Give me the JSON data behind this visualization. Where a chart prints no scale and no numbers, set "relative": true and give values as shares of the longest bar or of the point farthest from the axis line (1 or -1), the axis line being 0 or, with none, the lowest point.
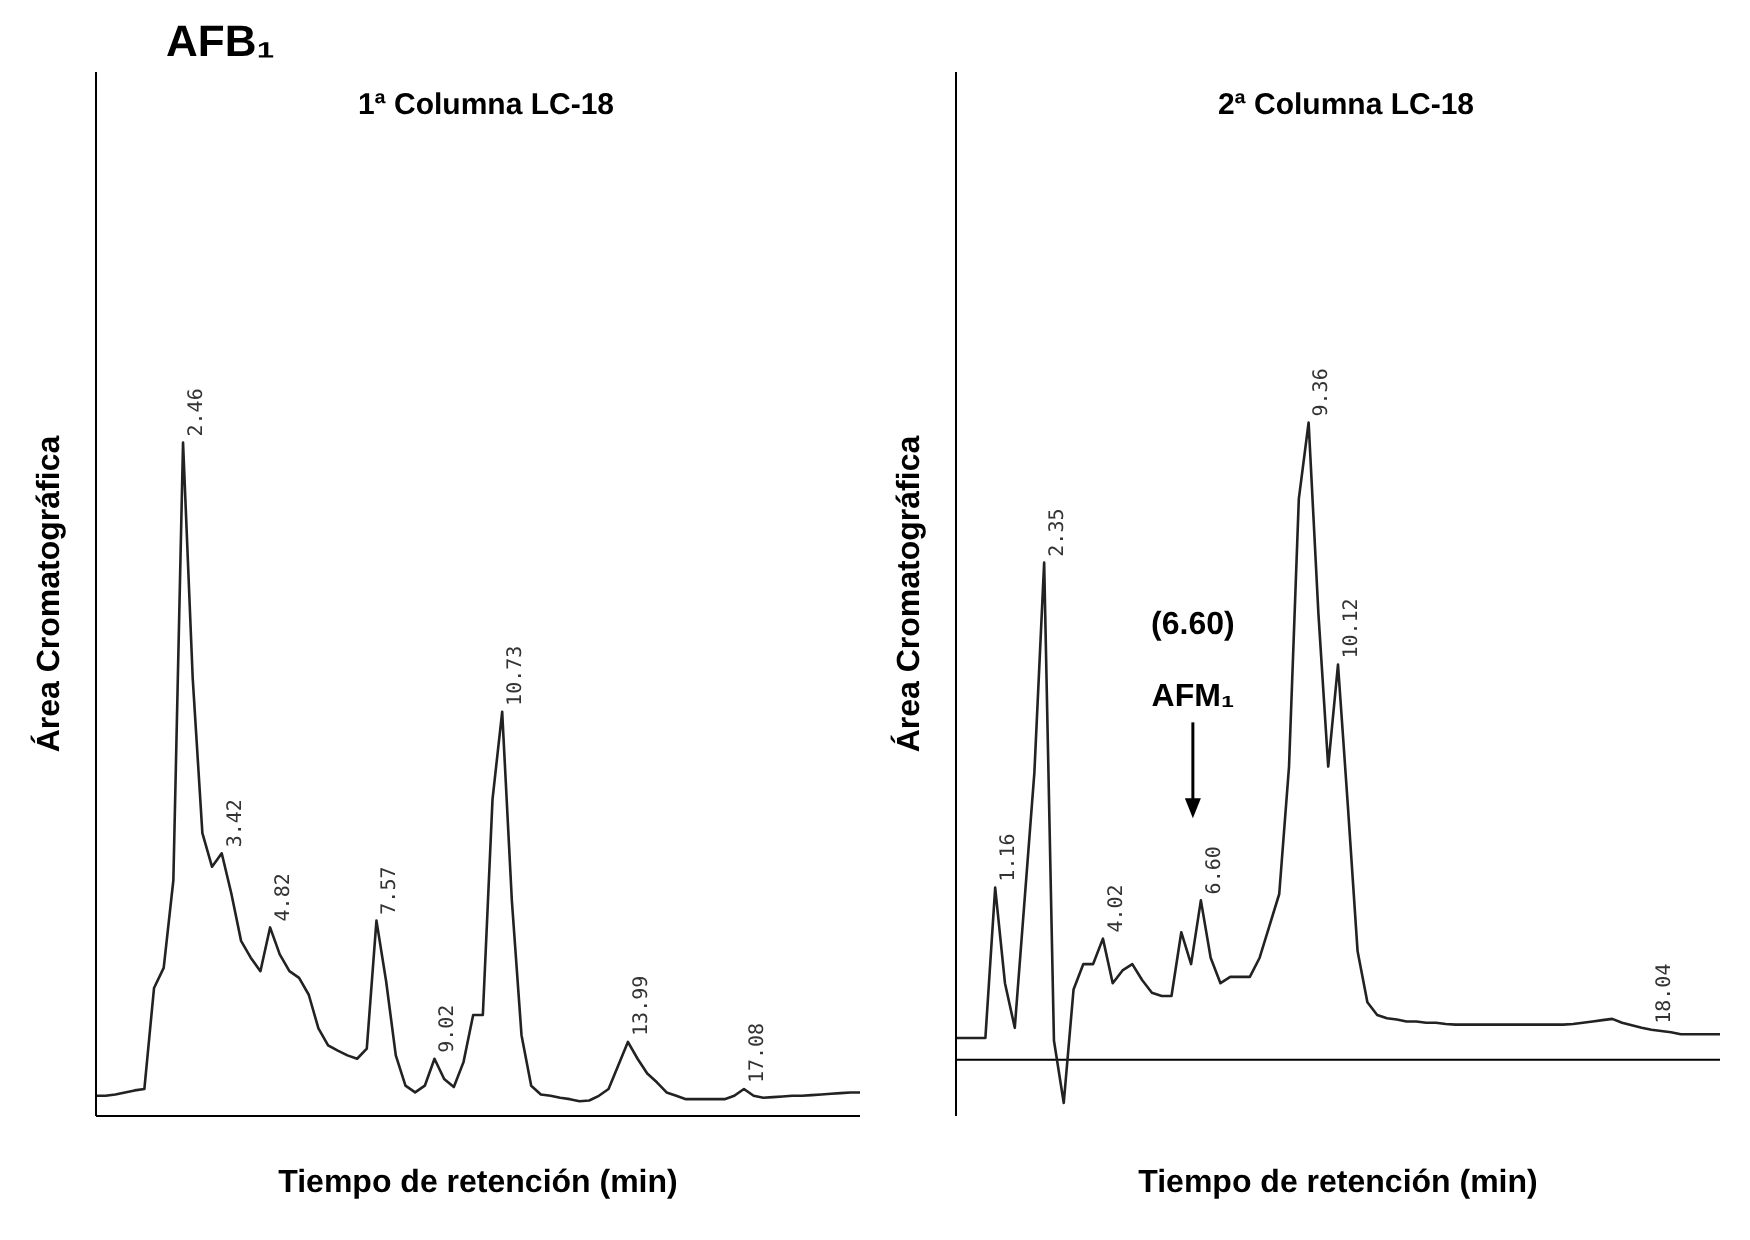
{
  "chart_data": [
    {
      "type": "line",
      "relative": true,
      "title": "1ª Columna LC-18",
      "xlabel": "Tiempo  de retención (min)",
      "ylabel": "Área Cromatográfica",
      "tick_labels": false,
      "color": "#222222",
      "categories": [
        null,
        null,
        null,
        null,
        null,
        null,
        null,
        null,
        null,
        null,
        null,
        null,
        null,
        null,
        null,
        null,
        null,
        null,
        null,
        null,
        null,
        null,
        null,
        null,
        null,
        null,
        null,
        null,
        null,
        null,
        null,
        null,
        null,
        null,
        null,
        null,
        null,
        null,
        null,
        null,
        null,
        null,
        null,
        null,
        null,
        null,
        null,
        null,
        null,
        null,
        null,
        null,
        null,
        null,
        null,
        null,
        null,
        null,
        null,
        null,
        null,
        null,
        null,
        null,
        null,
        null,
        null,
        null,
        null,
        null,
        null,
        null,
        null,
        null,
        null,
        null,
        null,
        null,
        null,
        null
      ],
      "values": [
        0.03,
        0.03,
        0.032,
        0.035,
        0.038,
        0.04,
        0.19,
        0.22,
        0.35,
        1,
        0.65,
        0.42,
        0.37,
        0.39,
        0.33,
        0.26,
        0.235,
        0.215,
        0.28,
        0.24,
        0.215,
        0.205,
        0.18,
        0.13,
        0.105,
        0.097,
        0.09,
        0.085,
        0.1,
        0.29,
        0.2,
        0.09,
        0.045,
        0.035,
        0.045,
        0.085,
        0.055,
        0.043,
        0.08,
        0.15,
        0.15,
        0.47,
        0.6,
        0.32,
        0.12,
        0.045,
        0.032,
        0.03,
        0.027,
        0.025,
        0.022,
        0.023,
        0.03,
        0.04,
        0.075,
        0.11,
        0.085,
        0.063,
        0.05,
        0.035,
        0.03,
        0.025,
        0.025,
        0.025,
        0.025,
        0.025,
        0.03,
        0.04,
        0.03,
        0.027,
        0.028,
        0.029,
        0.03,
        0.03,
        0.031,
        0.032,
        0.033,
        0.034,
        0.035,
        0.035
      ],
      "annotations": [
        "AFB₁",
        "2.46",
        "3.42",
        "4.82",
        "7.57",
        "9.02",
        "10.73",
        "13.99",
        "17.08"
      ]
    },
    {
      "type": "line",
      "relative": true,
      "title": "2ª Columna LC-18",
      "xlabel": "Tiempo de retención (min)",
      "ylabel": "Área Cromatográfica",
      "tick_labels": false,
      "color": "#222222",
      "categories": [
        null,
        null,
        null,
        null,
        null,
        null,
        null,
        null,
        null,
        null,
        null,
        null,
        null,
        null,
        null,
        null,
        null,
        null,
        null,
        null,
        null,
        null,
        null,
        null,
        null,
        null,
        null,
        null,
        null,
        null,
        null,
        null,
        null,
        null,
        null,
        null,
        null,
        null,
        null,
        null,
        null,
        null,
        null,
        null,
        null,
        null,
        null,
        null,
        null,
        null,
        null,
        null,
        null,
        null,
        null,
        null,
        null,
        null,
        null,
        null,
        null,
        null,
        null,
        null,
        null,
        null,
        null,
        null,
        null,
        null,
        null,
        null,
        null,
        null,
        null,
        null,
        null,
        null,
        null
      ],
      "values": [
        0.034,
        0.034,
        0.034,
        0.034,
        0.27,
        0.12,
        0.05,
        0.25,
        0.45,
        0.78,
        0.03,
        -0.068,
        0.11,
        0.15,
        0.15,
        0.19,
        0.12,
        0.14,
        0.15,
        0.125,
        0.105,
        0.1,
        0.1,
        0.2,
        0.15,
        0.25,
        0.16,
        0.12,
        0.13,
        0.13,
        0.13,
        0.16,
        0.21,
        0.26,
        0.46,
        0.88,
        1,
        0.7,
        0.46,
        0.62,
        0.4,
        0.17,
        0.09,
        0.07,
        0.065,
        0.063,
        0.06,
        0.06,
        0.058,
        0.058,
        0.056,
        0.055,
        0.055,
        0.055,
        0.055,
        0.055,
        0.055,
        0.055,
        0.055,
        0.055,
        0.055,
        0.055,
        0.055,
        0.056,
        0.058,
        0.06,
        0.062,
        0.064,
        0.058,
        0.054,
        0.05,
        0.047,
        0.045,
        0.043,
        0.04,
        0.04,
        0.04,
        0.04,
        0.04
      ],
      "annotations": [
        "1.16",
        "2.35",
        "4.02",
        "6.60",
        "(6.60)",
        "AFM₁",
        "9.36",
        "10.12",
        "18.04"
      ]
    }
  ]
}
